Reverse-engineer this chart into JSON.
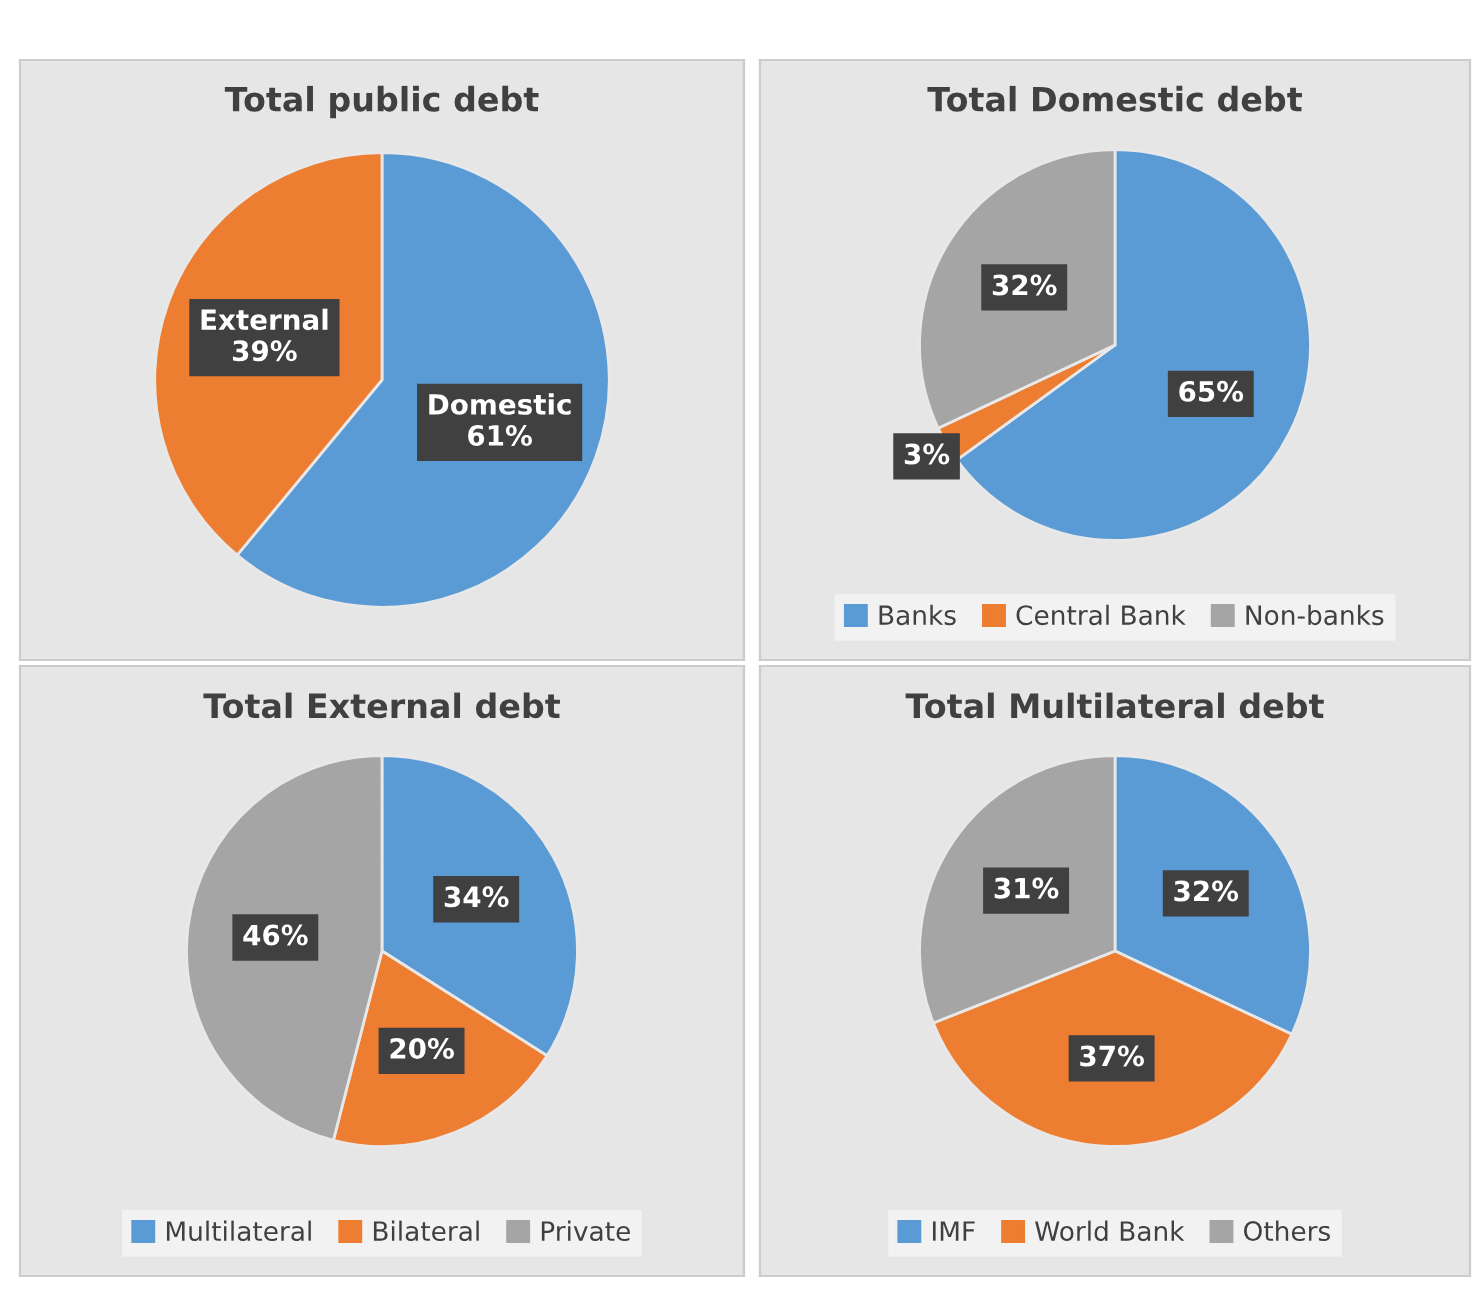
{
  "chart_data": [
    {
      "type": "pie",
      "title": "Total public debt",
      "categories": [
        "Domestic",
        "External"
      ],
      "values": [
        61,
        39
      ],
      "value_labels": [
        "61%",
        "39%"
      ],
      "colors": [
        "#5b9bd5",
        "#ed7d31"
      ],
      "legend": false
    },
    {
      "type": "pie",
      "title": "Total Domestic debt",
      "categories": [
        "Banks",
        "Central Bank",
        "Non-banks"
      ],
      "values": [
        65,
        3,
        32
      ],
      "value_labels": [
        "65%",
        "3%",
        "32%"
      ],
      "colors": [
        "#5b9bd5",
        "#ed7d31",
        "#a5a5a5"
      ],
      "legend": "bottom"
    },
    {
      "type": "pie",
      "title": "Total External debt",
      "categories": [
        "Multilateral",
        "Bilateral",
        "Private"
      ],
      "values": [
        34,
        20,
        46
      ],
      "value_labels": [
        "34%",
        "20%",
        "46%"
      ],
      "colors": [
        "#5b9bd5",
        "#ed7d31",
        "#a5a5a5"
      ],
      "legend": "bottom"
    },
    {
      "type": "pie",
      "title": "Total Multilateral debt",
      "categories": [
        "IMF",
        "World Bank",
        "Others"
      ],
      "values": [
        32,
        37,
        31
      ],
      "value_labels": [
        "32%",
        "37%",
        "31%"
      ],
      "colors": [
        "#5b9bd5",
        "#ed7d31",
        "#a5a5a5"
      ],
      "legend": "bottom"
    }
  ]
}
